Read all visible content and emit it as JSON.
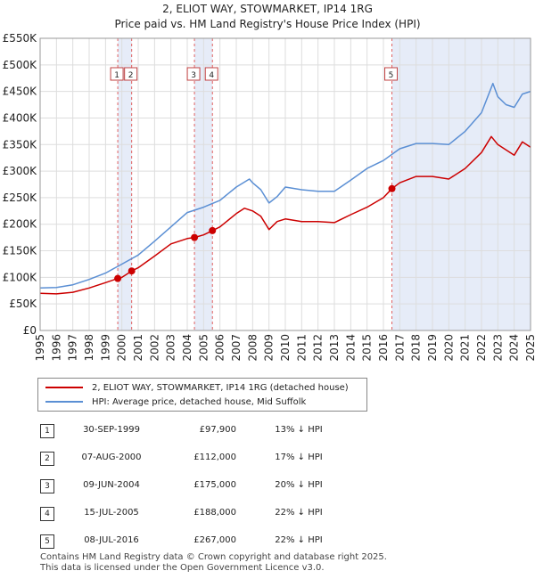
{
  "chart_data": {
    "type": "line",
    "title": "2, ELIOT WAY, STOWMARKET, IP14 1RG",
    "subtitle": "Price paid vs. HM Land Registry's House Price Index (HPI)",
    "xlim": [
      1995,
      2025
    ],
    "ylim": [
      0,
      550000
    ],
    "x_ticks": [
      "1995",
      "1996",
      "1997",
      "1998",
      "1999",
      "2000",
      "2001",
      "2002",
      "2003",
      "2004",
      "2005",
      "2006",
      "2007",
      "2008",
      "2009",
      "2010",
      "2011",
      "2012",
      "2013",
      "2014",
      "2015",
      "2016",
      "2017",
      "2018",
      "2019",
      "2020",
      "2021",
      "2022",
      "2023",
      "2024",
      "2025"
    ],
    "y_ticks": [
      "£0",
      "£50K",
      "£100K",
      "£150K",
      "£200K",
      "£250K",
      "£300K",
      "£350K",
      "£400K",
      "£450K",
      "£500K",
      "£550K"
    ],
    "series": [
      {
        "name": "2, ELIOT WAY, STOWMARKET, IP14 1RG (detached house)",
        "color": "#cc0000",
        "x": [
          1995,
          1996,
          1997,
          1998,
          1999,
          1999.75,
          2000,
          2000.6,
          2001,
          2002,
          2003,
          2004,
          2004.44,
          2005,
          2005.54,
          2006,
          2007,
          2007.5,
          2008,
          2008.5,
          2009,
          2009.5,
          2010,
          2011,
          2012,
          2013,
          2014,
          2015,
          2016,
          2016.52,
          2017,
          2018,
          2019,
          2020,
          2021,
          2022,
          2022.6,
          2023,
          2023.5,
          2024,
          2024.5,
          2025
        ],
        "y": [
          70000,
          69000,
          72000,
          80000,
          90000,
          97900,
          100000,
          112000,
          118000,
          140000,
          163000,
          173000,
          175000,
          180000,
          188000,
          195000,
          220000,
          230000,
          225000,
          215000,
          190000,
          205000,
          210000,
          205000,
          205000,
          203000,
          218000,
          232000,
          250000,
          267000,
          278000,
          290000,
          290000,
          285000,
          305000,
          335000,
          365000,
          350000,
          340000,
          330000,
          355000,
          345000
        ]
      },
      {
        "name": "HPI: Average price, detached house, Mid Suffolk",
        "color": "#5b8fd4",
        "x": [
          1995,
          1996,
          1997,
          1998,
          1999,
          2000,
          2001,
          2002,
          2003,
          2004,
          2005,
          2006,
          2007,
          2007.8,
          2008,
          2008.5,
          2009,
          2009.5,
          2010,
          2011,
          2012,
          2013,
          2014,
          2015,
          2016,
          2017,
          2018,
          2019,
          2020,
          2021,
          2022,
          2022.7,
          2023,
          2023.5,
          2024,
          2024.5,
          2025
        ],
        "y": [
          80000,
          81000,
          86000,
          96000,
          108000,
          125000,
          142000,
          168000,
          195000,
          222000,
          232000,
          245000,
          270000,
          285000,
          278000,
          265000,
          240000,
          252000,
          270000,
          265000,
          262000,
          262000,
          283000,
          305000,
          320000,
          342000,
          352000,
          352000,
          350000,
          375000,
          410000,
          465000,
          440000,
          425000,
          420000,
          445000,
          450000
        ]
      }
    ],
    "sales": [
      {
        "num": "1",
        "date": "30-SEP-1999",
        "price": "£97,900",
        "hpi": "13% ↓ HPI",
        "x": 1999.75,
        "y": 97900
      },
      {
        "num": "2",
        "date": "07-AUG-2000",
        "price": "£112,000",
        "hpi": "17% ↓ HPI",
        "x": 2000.6,
        "y": 112000
      },
      {
        "num": "3",
        "date": "09-JUN-2004",
        "price": "£175,000",
        "hpi": "20% ↓ HPI",
        "x": 2004.44,
        "y": 175000
      },
      {
        "num": "4",
        "date": "15-JUL-2005",
        "price": "£188,000",
        "hpi": "22% ↓ HPI",
        "x": 2005.54,
        "y": 188000
      },
      {
        "num": "5",
        "date": "08-JUL-2016",
        "price": "£267,000",
        "hpi": "22% ↓ HPI",
        "x": 2016.52,
        "y": 267000
      }
    ],
    "shaded_periods": [
      [
        1999.75,
        2000.6
      ],
      [
        2004.44,
        2005.54
      ],
      [
        2016.52,
        2025
      ]
    ],
    "colors": {
      "sale_line": "#cc0000",
      "hpi_line": "#5b8fd4",
      "shade": "#dde6f6",
      "grid": "#dddddd"
    }
  },
  "legend": {
    "property_label": "2, ELIOT WAY, STOWMARKET, IP14 1RG (detached house)",
    "hpi_label": "HPI: Average price, detached house, Mid Suffolk"
  },
  "footer": {
    "line1": "Contains HM Land Registry data © Crown copyright and database right 2025.",
    "line2": "This data is licensed under the Open Government Licence v3.0."
  }
}
